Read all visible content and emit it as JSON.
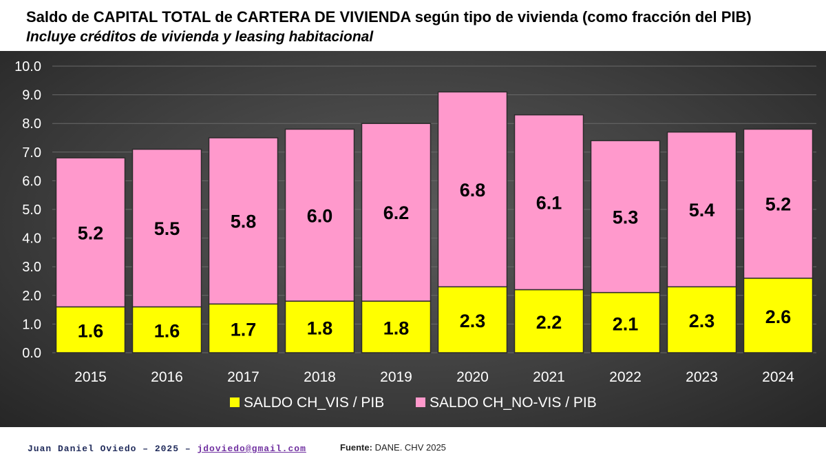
{
  "title": "Saldo de CAPITAL TOTAL de CARTERA DE VIVIENDA según tipo de vivienda (como fracción del PIB)",
  "subtitle": "Incluye créditos de vivienda y leasing habitacional",
  "footer": {
    "author": "Juan Daniel Oviedo – 2025 –",
    "email": "jdoviedo@gmail.com",
    "source_label": "Fuente:",
    "source_text": "DANE. CHV 2025"
  },
  "colors": {
    "vis": "#ffff00",
    "no_vis": "#ff99cc",
    "panel": "#404040",
    "grid": "#6a6a6a",
    "axis_text": "#ffffff",
    "label_text": "#000000"
  },
  "chart_data": {
    "type": "bar",
    "stacked": true,
    "categories": [
      "2015",
      "2016",
      "2017",
      "2018",
      "2019",
      "2020",
      "2021",
      "2022",
      "2023",
      "2024"
    ],
    "series": [
      {
        "name": "SALDO CH_VIS / PIB",
        "values": [
          1.6,
          1.6,
          1.7,
          1.8,
          1.8,
          2.3,
          2.2,
          2.1,
          2.3,
          2.6
        ],
        "labels": [
          "1.6",
          "1.6",
          "1.7",
          "1.8",
          "1.8",
          "2.3",
          "2.2",
          "2.1",
          "2.3",
          "2.6"
        ],
        "color": "#ffff00"
      },
      {
        "name": "SALDO CH_NO-VIS / PIB",
        "values": [
          5.2,
          5.5,
          5.8,
          6.0,
          6.2,
          6.8,
          6.1,
          5.3,
          5.4,
          5.2
        ],
        "labels": [
          "5.2",
          "5.5",
          "5.8",
          "6.0",
          "6.2",
          "6.8",
          "6.1",
          "5.3",
          "5.4",
          "5.2"
        ],
        "color": "#ff99cc"
      }
    ],
    "ylim": [
      0,
      10
    ],
    "yticks": [
      "0.0",
      "1.0",
      "2.0",
      "3.0",
      "4.0",
      "5.0",
      "6.0",
      "7.0",
      "8.0",
      "9.0",
      "10.0"
    ],
    "grid": true,
    "legend_position": "bottom-center"
  }
}
